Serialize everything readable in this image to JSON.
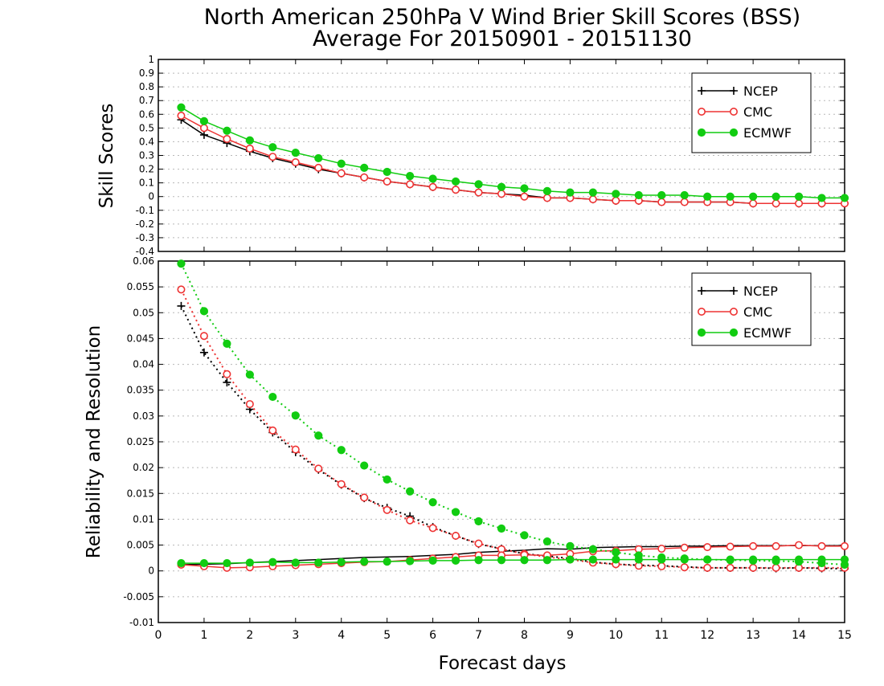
{
  "figure": {
    "title_line1": "North American 250hPa V Wind Brier Skill Scores (BSS)",
    "title_line2": "Average For 20150901 - 20151130",
    "xlabel": "Forecast days"
  },
  "chart_data": [
    {
      "type": "line",
      "ylabel": "Skill Scores",
      "xlim": [
        0,
        15
      ],
      "ylim": [
        -0.4,
        1
      ],
      "x_ticks": [
        0,
        1,
        2,
        3,
        4,
        5,
        6,
        7,
        8,
        9,
        10,
        11,
        12,
        13,
        14,
        15
      ],
      "y_ticks": [
        -0.4,
        -0.3,
        -0.2,
        -0.1,
        0,
        0.1,
        0.2,
        0.3,
        0.4,
        0.5,
        0.6,
        0.7,
        0.8,
        0.9,
        1
      ],
      "y_tick_labels": [
        "-0.4",
        "-0.3",
        "-0.2",
        "-0.1",
        "0",
        "0.1",
        "0.2",
        "0.3",
        "0.4",
        "0.5",
        "0.6",
        "0.7",
        "0.8",
        "0.9",
        "1"
      ],
      "grid": "horizontal dotted",
      "legend_position": "top-right",
      "x": [
        0.5,
        1,
        1.5,
        2,
        2.5,
        3,
        3.5,
        4,
        4.5,
        5,
        5.5,
        6,
        6.5,
        7,
        7.5,
        8,
        8.5,
        9,
        9.5,
        10,
        10.5,
        11,
        11.5,
        12,
        12.5,
        13,
        13.5,
        14,
        14.5,
        15
      ],
      "series": [
        {
          "name": "NCEP",
          "color": "#000000",
          "marker": "plus",
          "style": "solid",
          "values": [
            0.56,
            0.45,
            0.39,
            0.33,
            0.28,
            0.24,
            0.2,
            0.17,
            0.14,
            0.11,
            0.09,
            0.07,
            0.05,
            0.03,
            0.02,
            0.01,
            -0.01,
            -0.01,
            -0.02,
            -0.03,
            -0.03,
            -0.04,
            -0.04,
            -0.04,
            -0.04,
            -0.05,
            -0.05,
            -0.05,
            -0.05,
            -0.05
          ]
        },
        {
          "name": "CMC",
          "color": "#ee3333",
          "marker": "circle-open",
          "style": "solid",
          "values": [
            0.59,
            0.5,
            0.42,
            0.35,
            0.29,
            0.25,
            0.21,
            0.17,
            0.14,
            0.11,
            0.09,
            0.07,
            0.05,
            0.03,
            0.02,
            0.0,
            -0.01,
            -0.01,
            -0.02,
            -0.03,
            -0.03,
            -0.04,
            -0.04,
            -0.04,
            -0.04,
            -0.05,
            -0.05,
            -0.05,
            -0.05,
            -0.05
          ]
        },
        {
          "name": "ECMWF",
          "color": "#11cc11",
          "marker": "circle-filled",
          "style": "solid",
          "values": [
            0.65,
            0.55,
            0.48,
            0.41,
            0.36,
            0.32,
            0.28,
            0.24,
            0.21,
            0.18,
            0.15,
            0.13,
            0.11,
            0.09,
            0.07,
            0.06,
            0.04,
            0.03,
            0.03,
            0.02,
            0.01,
            0.01,
            0.01,
            0.0,
            0.0,
            -0.0,
            -0.0,
            -0.0,
            -0.01,
            -0.01
          ]
        }
      ]
    },
    {
      "type": "line",
      "ylabel": "Reliability and Resolution",
      "xlim": [
        0,
        15
      ],
      "ylim": [
        -0.01,
        0.06
      ],
      "x_ticks": [
        0,
        1,
        2,
        3,
        4,
        5,
        6,
        7,
        8,
        9,
        10,
        11,
        12,
        13,
        14,
        15
      ],
      "y_ticks": [
        -0.01,
        -0.005,
        0,
        0.005,
        0.01,
        0.015,
        0.02,
        0.025,
        0.03,
        0.035,
        0.04,
        0.045,
        0.05,
        0.055,
        0.06
      ],
      "y_tick_labels": [
        "-0.01",
        "-0.005",
        "0",
        "0.005",
        "0.01",
        "0.015",
        "0.02",
        "0.025",
        "0.03",
        "0.035",
        "0.04",
        "0.045",
        "0.05",
        "0.055",
        "0.06"
      ],
      "grid": "horizontal dotted",
      "legend_position": "top-right",
      "x": [
        0.5,
        1,
        1.5,
        2,
        2.5,
        3,
        3.5,
        4,
        4.5,
        5,
        5.5,
        6,
        6.5,
        7,
        7.5,
        8,
        8.5,
        9,
        9.5,
        10,
        10.5,
        11,
        11.5,
        12,
        12.5,
        13,
        13.5,
        14,
        14.5,
        15
      ],
      "series": [
        {
          "name": "NCEP",
          "color": "#000000",
          "marker": "plus",
          "style": "dotted",
          "values": [
            0.0513,
            0.0423,
            0.0365,
            0.0313,
            0.0268,
            0.023,
            0.0196,
            0.0167,
            0.0141,
            0.0122,
            0.0106,
            0.0085,
            0.0068,
            0.0052,
            0.0043,
            0.0033,
            0.0029,
            0.0024,
            0.0017,
            0.0013,
            0.0011,
            0.001,
            0.0008,
            0.0006,
            0.0006,
            0.0006,
            0.0005,
            0.0006,
            0.0005,
            0.0004
          ]
        },
        {
          "name": "",
          "color": "#000000",
          "marker": "none",
          "style": "solid",
          "values": [
            0.0012,
            0.0013,
            0.0014,
            0.0016,
            0.0018,
            0.002,
            0.0022,
            0.0024,
            0.0026,
            0.0027,
            0.0028,
            0.003,
            0.0032,
            0.0036,
            0.0038,
            0.004,
            0.0043,
            0.0042,
            0.0045,
            0.0046,
            0.0047,
            0.0047,
            0.0048,
            0.0048,
            0.0049,
            0.0049,
            0.0049,
            0.0049,
            0.0049,
            0.0049
          ]
        },
        {
          "name": "CMC",
          "color": "#ee3333",
          "marker": "circle-open",
          "style": "dotted",
          "values": [
            0.0545,
            0.0455,
            0.0381,
            0.0323,
            0.0272,
            0.0235,
            0.0198,
            0.0168,
            0.0142,
            0.0118,
            0.0098,
            0.0083,
            0.0068,
            0.0053,
            0.0042,
            0.0033,
            0.0027,
            0.0022,
            0.0016,
            0.0013,
            0.001,
            0.0009,
            0.0007,
            0.0006,
            0.0006,
            0.0006,
            0.0006,
            0.0006,
            0.0006,
            0.0006
          ]
        },
        {
          "name": "",
          "color": "#ee3333",
          "marker": "circle-open",
          "style": "solid",
          "values": [
            0.0012,
            0.0009,
            0.0006,
            0.0007,
            0.0009,
            0.0011,
            0.0013,
            0.0015,
            0.0017,
            0.0018,
            0.0021,
            0.0024,
            0.0027,
            0.003,
            0.003,
            0.0031,
            0.003,
            0.0033,
            0.0038,
            0.0039,
            0.0042,
            0.0043,
            0.0045,
            0.0046,
            0.0047,
            0.0048,
            0.0048,
            0.005,
            0.0048,
            0.0048
          ]
        },
        {
          "name": "ECMWF",
          "color": "#11cc11",
          "marker": "circle-filled",
          "style": "dotted",
          "values": [
            0.0595,
            0.0503,
            0.044,
            0.038,
            0.0337,
            0.0301,
            0.0262,
            0.0234,
            0.0204,
            0.0177,
            0.0154,
            0.0133,
            0.0114,
            0.0096,
            0.0082,
            0.0069,
            0.0057,
            0.0048,
            0.0042,
            0.0036,
            0.003,
            0.0026,
            0.0024,
            0.0022,
            0.0021,
            0.002,
            0.0019,
            0.0018,
            0.0015,
            0.0012
          ]
        },
        {
          "name": "",
          "color": "#11cc11",
          "marker": "circle-filled",
          "style": "solid",
          "values": [
            0.0015,
            0.0015,
            0.0015,
            0.0016,
            0.0017,
            0.0016,
            0.0016,
            0.0017,
            0.0018,
            0.0018,
            0.0019,
            0.002,
            0.002,
            0.0021,
            0.0021,
            0.0021,
            0.0021,
            0.0022,
            0.0022,
            0.0022,
            0.0022,
            0.0022,
            0.0022,
            0.0022,
            0.0022,
            0.0022,
            0.0022,
            0.0022,
            0.0022,
            0.0022
          ]
        }
      ]
    }
  ]
}
